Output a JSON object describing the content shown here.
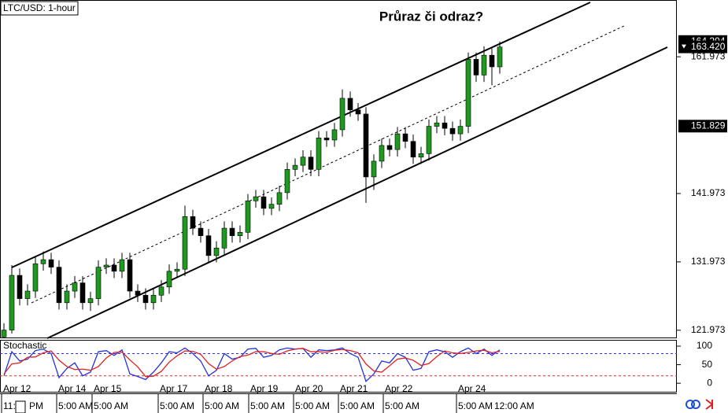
{
  "chart_data": [
    {
      "type": "candlestick",
      "title": "LTC/USD: 1-hour",
      "annotation": "Průraz či odraz?",
      "open": [
        121.0,
        122.0,
        130.0,
        126.6,
        127.7,
        131.7,
        132.3,
        131.2,
        126.0,
        127.7,
        128.9,
        126.0,
        126.6,
        131.2,
        131.5,
        130.6,
        132.3,
        127.7,
        127.1,
        126.0,
        127.1,
        128.3,
        130.6,
        130.9,
        138.6,
        136.9,
        135.8,
        132.9,
        134.0,
        136.9,
        135.8,
        136.3,
        140.9,
        141.5,
        139.8,
        140.4,
        142.1,
        145.5,
        146.1,
        147.3,
        145.5,
        150.1,
        149.8,
        151.3,
        155.9,
        154.2,
        153.6,
        144.4,
        146.7,
        149.0,
        148.4,
        150.7,
        149.6,
        147.3,
        147.8,
        151.8,
        152.3,
        151.5,
        150.7,
        151.8,
        161.6,
        159.3,
        162.2,
        160.5
      ],
      "high": [
        123.0,
        131.5,
        131.0,
        128.7,
        132.7,
        133.5,
        133.3,
        132.2,
        128.7,
        129.9,
        129.9,
        127.6,
        132.2,
        132.5,
        132.5,
        133.3,
        133.3,
        128.7,
        128.1,
        128.1,
        129.3,
        131.6,
        131.9,
        140.2,
        139.6,
        137.9,
        136.8,
        135.0,
        137.9,
        137.9,
        137.3,
        141.9,
        142.5,
        142.5,
        141.4,
        143.1,
        146.5,
        147.1,
        148.3,
        148.3,
        151.1,
        151.1,
        152.3,
        157.2,
        156.9,
        155.2,
        154.6,
        147.7,
        150.0,
        150.0,
        151.7,
        151.7,
        150.6,
        148.8,
        152.8,
        153.3,
        153.3,
        152.5,
        152.8,
        162.6,
        162.6,
        163.5,
        163.2,
        164.2
      ],
      "low": [
        120.9,
        121.5,
        125.6,
        125.6,
        126.7,
        130.7,
        130.2,
        125.0,
        125.0,
        126.7,
        125.0,
        124.8,
        125.6,
        130.2,
        129.6,
        129.6,
        126.7,
        126.1,
        125.0,
        125.0,
        126.1,
        127.3,
        129.6,
        129.9,
        135.9,
        134.8,
        131.9,
        131.9,
        133.0,
        134.8,
        134.8,
        135.3,
        139.9,
        138.8,
        138.8,
        139.4,
        141.1,
        144.5,
        145.1,
        144.5,
        144.5,
        148.8,
        148.8,
        150.3,
        153.2,
        152.6,
        140.6,
        142.5,
        145.7,
        147.4,
        147.4,
        148.6,
        146.3,
        146.3,
        146.8,
        150.8,
        150.5,
        149.7,
        149.7,
        150.8,
        158.3,
        158.3,
        157.8,
        159.5
      ],
      "close": [
        122.0,
        130.0,
        126.6,
        127.7,
        131.7,
        132.3,
        131.2,
        126.0,
        127.7,
        128.9,
        126.0,
        126.6,
        131.2,
        131.5,
        130.6,
        132.3,
        127.7,
        127.1,
        126.0,
        127.1,
        128.3,
        130.6,
        130.9,
        138.6,
        136.9,
        135.8,
        132.9,
        134.0,
        136.9,
        135.8,
        136.3,
        140.9,
        141.5,
        139.8,
        140.4,
        142.1,
        145.5,
        146.1,
        147.3,
        145.5,
        150.1,
        149.8,
        151.3,
        155.9,
        154.2,
        153.6,
        144.4,
        146.7,
        149.0,
        148.4,
        150.7,
        149.6,
        147.3,
        147.8,
        151.8,
        152.3,
        151.5,
        150.7,
        151.8,
        161.6,
        159.3,
        162.2,
        160.5,
        163.4
      ],
      "up_color": "#1f9a1f",
      "down_color": "#000000",
      "ylim": [
        120.8,
        169.7
      ],
      "yticks": [
        121.973,
        131.973,
        141.973,
        161.973
      ],
      "price_markers": [
        164.204,
        {
          "value": 163.42,
          "label": "163.420"
        },
        151.829
      ],
      "date_labels": [
        "Apr 12",
        "Apr 14",
        "Apr 15",
        "Apr 17",
        "Apr 18",
        "Apr 19",
        "Apr 20",
        "Apr 21",
        "Apr 22",
        "Apr 24"
      ],
      "time_labels": [
        "11:",
        "PM",
        "5:00 AM",
        "5:00 AM",
        "5:00 AM",
        "5:00 AM",
        "5:00 AM",
        "5:00 AM",
        "5:00 AM",
        "5:00 AM",
        "5:00 AM",
        "12:00 AM"
      ]
    },
    {
      "type": "line",
      "title": "Stochastic",
      "series": [
        {
          "color": "#2233dd",
          "values": [
            20,
            85,
            60,
            65,
            88,
            92,
            80,
            15,
            40,
            55,
            20,
            30,
            85,
            88,
            75,
            90,
            25,
            18,
            10,
            30,
            55,
            85,
            82,
            95,
            80,
            60,
            20,
            35,
            80,
            65,
            70,
            92,
            94,
            70,
            75,
            90,
            95,
            92,
            94,
            70,
            90,
            88,
            90,
            95,
            80,
            70,
            5,
            25,
            60,
            55,
            80,
            70,
            35,
            40,
            85,
            90,
            85,
            70,
            85,
            95,
            80,
            92,
            75,
            90
          ]
        },
        {
          "color": "#dd2222",
          "values": [
            25,
            52,
            55,
            70,
            71,
            82,
            87,
            62,
            45,
            37,
            38,
            35,
            45,
            68,
            83,
            84,
            63,
            44,
            18,
            19,
            32,
            57,
            74,
            87,
            86,
            78,
            53,
            38,
            45,
            60,
            72,
            76,
            85,
            85,
            80,
            78,
            87,
            92,
            94,
            85,
            85,
            83,
            89,
            91,
            88,
            82,
            52,
            33,
            30,
            47,
            65,
            68,
            62,
            48,
            53,
            72,
            87,
            82,
            80,
            83,
            87,
            89,
            82,
            86
          ]
        }
      ],
      "levels": [
        20,
        80
      ],
      "ylim": [
        -23,
        117
      ],
      "yticks": [
        0,
        50,
        100
      ]
    }
  ]
}
